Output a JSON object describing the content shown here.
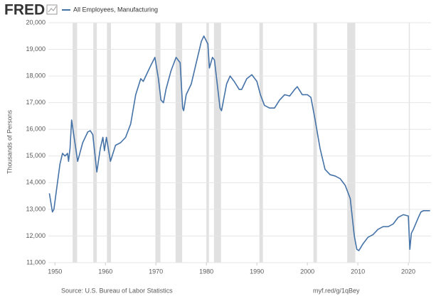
{
  "brand": "FRED",
  "chart_data": {
    "type": "line",
    "y_label": "Thousands of Persons",
    "source": "Source: U.S. Bureau of Labor Statistics",
    "url": "myf.red/g/1qBey",
    "x": [
      1948.9,
      1949.5,
      1949.8,
      1950.5,
      1951,
      1951.5,
      1952,
      1952.5,
      1952.7,
      1953,
      1953.3,
      1954.5,
      1955.5,
      1956.5,
      1957,
      1957.5,
      1958.3,
      1959,
      1959.5,
      1959.8,
      1960.2,
      1961,
      1962,
      1963,
      1964,
      1965,
      1966,
      1967,
      1967.5,
      1968,
      1969,
      1969.8,
      1970.5,
      1971,
      1971.5,
      1972,
      1973,
      1974,
      1974.8,
      1975.3,
      1975.5,
      1976,
      1977,
      1978,
      1979,
      1979.5,
      1980.3,
      1980.6,
      1981.2,
      1981.6,
      1982.7,
      1983,
      1984,
      1984.7,
      1985.5,
      1986.5,
      1987,
      1988,
      1989,
      1990,
      1990.7,
      1991.5,
      1992.5,
      1993.5,
      1994.5,
      1995.5,
      1996.5,
      1997.5,
      1998,
      1999,
      2000,
      2000.7,
      2001.5,
      2002.5,
      2003.5,
      2004.5,
      2005.5,
      2006.5,
      2007.5,
      2008.5,
      2009.3,
      2009.8,
      2010.2,
      2011,
      2012,
      2013,
      2014,
      2015,
      2016,
      2017,
      2018,
      2019,
      2020,
      2020.3,
      2020.6,
      2021,
      2022,
      2022.5,
      2023,
      2024.3
    ],
    "series": [
      {
        "name": "All Employees, Manufacturing",
        "color": "#4572a7",
        "values": [
          13600,
          12900,
          13000,
          14000,
          14700,
          15100,
          15000,
          15100,
          14800,
          15300,
          16350,
          14800,
          15500,
          15900,
          15950,
          15800,
          14400,
          15300,
          15700,
          15200,
          15700,
          14800,
          15400,
          15500,
          15700,
          16200,
          17300,
          17900,
          17800,
          18000,
          18400,
          18700,
          17900,
          17100,
          17000,
          17500,
          18200,
          18700,
          18500,
          16800,
          16700,
          17300,
          17700,
          18500,
          19300,
          19500,
          19200,
          18300,
          18700,
          18600,
          16800,
          16700,
          17700,
          18000,
          17800,
          17500,
          17500,
          17900,
          18050,
          17800,
          17300,
          16900,
          16800,
          16800,
          17100,
          17300,
          17250,
          17500,
          17600,
          17300,
          17300,
          17200,
          16400,
          15300,
          14500,
          14300,
          14250,
          14150,
          13900,
          13400,
          12000,
          11500,
          11450,
          11700,
          11950,
          12050,
          12250,
          12350,
          12350,
          12450,
          12700,
          12800,
          12750,
          11500,
          12100,
          12250,
          12700,
          12900,
          12950,
          12950
        ]
      }
    ],
    "recessions": [
      [
        1953.5,
        1954.4
      ],
      [
        1957.6,
        1958.3
      ],
      [
        1960.3,
        1961.1
      ],
      [
        1969.9,
        1970.9
      ],
      [
        1973.9,
        1975.2
      ],
      [
        1980.0,
        1980.5
      ],
      [
        1981.5,
        1982.9
      ],
      [
        1990.5,
        1991.2
      ],
      [
        2001.2,
        2001.9
      ],
      [
        2007.9,
        2009.5
      ],
      [
        2020.1,
        2020.3
      ]
    ],
    "recession_color": "#e1e1e1",
    "xlim": [
      1948.7,
      2024.5
    ],
    "ylim": [
      11000,
      20000
    ],
    "xticks": [
      1950,
      1960,
      1970,
      1980,
      1990,
      2000,
      2010,
      2020
    ],
    "yticks": [
      {
        "value": 11000,
        "label": "11,000"
      },
      {
        "value": 12000,
        "label": "12,000"
      },
      {
        "value": 13000,
        "label": "13,000"
      },
      {
        "value": 14000,
        "label": "14,000"
      },
      {
        "value": 15000,
        "label": "15,000"
      },
      {
        "value": 16000,
        "label": "16,000"
      },
      {
        "value": 17000,
        "label": "17,000"
      },
      {
        "value": 18000,
        "label": "18,000"
      },
      {
        "value": 19000,
        "label": "19,000"
      },
      {
        "value": 20000,
        "label": "20,000"
      }
    ],
    "grid": true
  }
}
